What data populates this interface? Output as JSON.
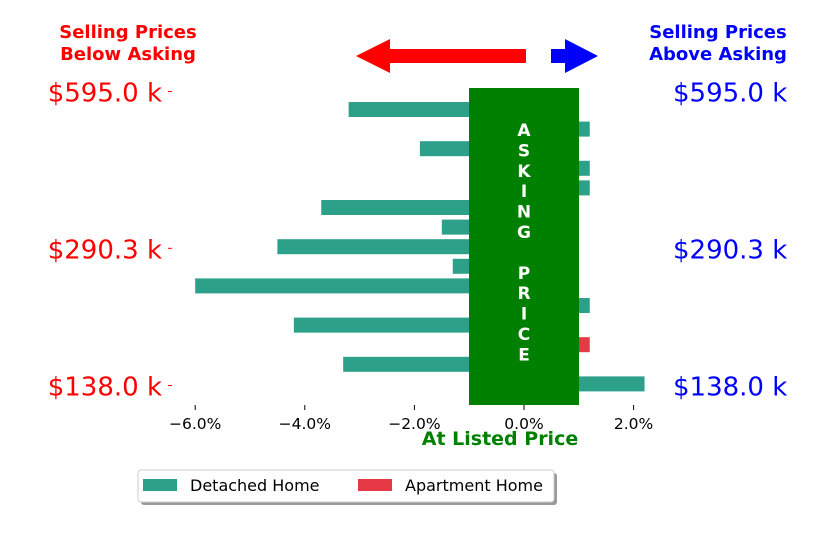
{
  "chart_data": {
    "type": "bar",
    "orientation": "horizontal",
    "title_left": "Selling Prices Below Asking",
    "title_left_lines": [
      "Selling Prices",
      "Below Asking"
    ],
    "title_right": "Selling Prices Above Asking",
    "title_right_lines": [
      "Selling Prices",
      "Above Asking"
    ],
    "xlabel": "At Listed Price",
    "center_band_label": "ASKING PRICE",
    "center_band_letters": [
      "A",
      "S",
      "K",
      "I",
      "N",
      "G",
      "",
      "P",
      "R",
      "I",
      "C",
      "E"
    ],
    "xlim": [
      -6.0,
      2.0
    ],
    "x_ticks": [
      "−6.0%",
      "−4.0%",
      "−2.0%",
      "0.0%",
      "2.0%"
    ],
    "x_tick_values": [
      -6.0,
      -4.0,
      -2.0,
      0.0,
      2.0
    ],
    "y_tick_labels_left": [
      "$595.0 k",
      "$290.3 k",
      "$138.0 k"
    ],
    "y_tick_labels_right": [
      "$595.0 k",
      "$290.3 k",
      "$138.0 k"
    ],
    "y_tick_rows": [
      0,
      8,
      15
    ],
    "series": [
      {
        "name": "Detached Home",
        "color": "#2ca089",
        "bars": [
          {
            "row": 0,
            "value": -3.2
          },
          {
            "row": 1,
            "value": 1.2
          },
          {
            "row": 2,
            "value": -1.9
          },
          {
            "row": 3,
            "value": 1.2
          },
          {
            "row": 4,
            "value": 1.2
          },
          {
            "row": 5,
            "value": -3.7
          },
          {
            "row": 6,
            "value": -1.5
          },
          {
            "row": 7,
            "value": -4.5
          },
          {
            "row": 8,
            "value": -1.3
          },
          {
            "row": 9,
            "value": -6.0
          },
          {
            "row": 10,
            "value": 1.2
          },
          {
            "row": 11,
            "value": -4.2
          },
          {
            "row": 13,
            "value": -3.3
          },
          {
            "row": 14,
            "value": 2.2
          }
        ]
      },
      {
        "name": "Apartment Home",
        "color": "#e63946",
        "bars": [
          {
            "row": 12,
            "value": 1.2
          }
        ]
      }
    ],
    "colors": {
      "below": "#ff0000",
      "above": "#0000ff",
      "band": "#008000"
    },
    "legend_position": "bottom"
  }
}
